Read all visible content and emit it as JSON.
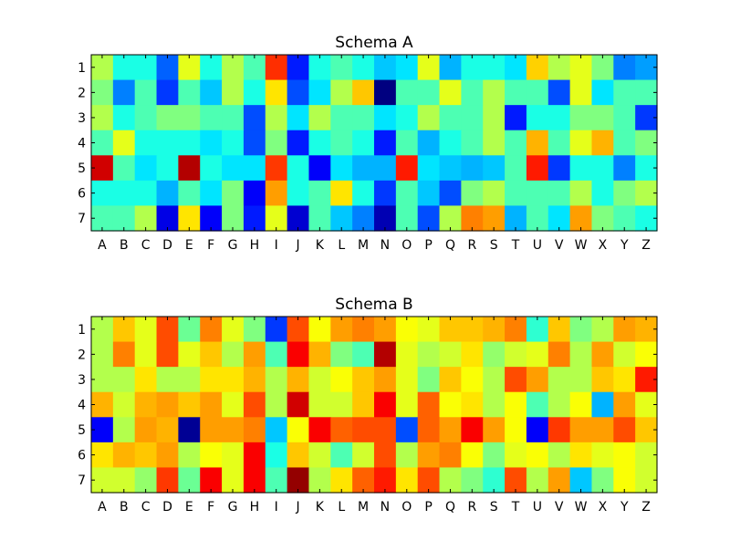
{
  "chart_data": [
    {
      "type": "heatmap",
      "title": "Schema A",
      "xlabel": "",
      "ylabel": "",
      "x_categories": [
        "A",
        "B",
        "C",
        "D",
        "E",
        "F",
        "G",
        "H",
        "I",
        "J",
        "K",
        "L",
        "M",
        "N",
        "O",
        "P",
        "Q",
        "R",
        "S",
        "T",
        "U",
        "V",
        "W",
        "X",
        "Y",
        "Z"
      ],
      "y_categories": [
        "1",
        "2",
        "3",
        "4",
        "5",
        "6",
        "7"
      ],
      "colormap": "jet",
      "value_range": [
        0,
        1
      ],
      "grid": false,
      "legend": "none",
      "values": [
        [
          0.55,
          0.4,
          0.4,
          0.22,
          0.6,
          0.4,
          0.55,
          0.45,
          0.83,
          0.15,
          0.4,
          0.45,
          0.4,
          0.32,
          0.35,
          0.6,
          0.3,
          0.4,
          0.4,
          0.35,
          0.67,
          0.55,
          0.6,
          0.5,
          0.25,
          0.28
        ],
        [
          0.5,
          0.25,
          0.45,
          0.18,
          0.45,
          0.32,
          0.55,
          0.4,
          0.65,
          0.2,
          0.35,
          0.55,
          0.68,
          0.0,
          0.45,
          0.45,
          0.6,
          0.45,
          0.55,
          0.45,
          0.45,
          0.2,
          0.6,
          0.35,
          0.45,
          0.45
        ],
        [
          0.55,
          0.4,
          0.45,
          0.5,
          0.5,
          0.45,
          0.45,
          0.2,
          0.55,
          0.35,
          0.55,
          0.45,
          0.45,
          0.35,
          0.4,
          0.55,
          0.45,
          0.45,
          0.55,
          0.15,
          0.4,
          0.4,
          0.5,
          0.5,
          0.45,
          0.18
        ],
        [
          0.45,
          0.6,
          0.4,
          0.4,
          0.4,
          0.35,
          0.4,
          0.2,
          0.5,
          0.15,
          0.4,
          0.45,
          0.4,
          0.15,
          0.45,
          0.3,
          0.4,
          0.45,
          0.55,
          0.45,
          0.7,
          0.45,
          0.6,
          0.7,
          0.45,
          0.5
        ],
        [
          0.92,
          0.45,
          0.35,
          0.4,
          0.95,
          0.4,
          0.35,
          0.35,
          0.82,
          0.4,
          0.12,
          0.35,
          0.3,
          0.3,
          0.85,
          0.35,
          0.32,
          0.3,
          0.32,
          0.45,
          0.85,
          0.18,
          0.4,
          0.4,
          0.25,
          0.4
        ],
        [
          0.4,
          0.4,
          0.4,
          0.3,
          0.45,
          0.35,
          0.5,
          0.12,
          0.72,
          0.4,
          0.45,
          0.65,
          0.4,
          0.18,
          0.45,
          0.32,
          0.2,
          0.5,
          0.55,
          0.45,
          0.45,
          0.45,
          0.55,
          0.4,
          0.5,
          0.55
        ],
        [
          0.45,
          0.45,
          0.55,
          0.1,
          0.65,
          0.12,
          0.5,
          0.15,
          0.6,
          0.08,
          0.45,
          0.32,
          0.25,
          0.05,
          0.45,
          0.2,
          0.55,
          0.75,
          0.72,
          0.3,
          0.45,
          0.35,
          0.72,
          0.5,
          0.45,
          0.4
        ]
      ]
    },
    {
      "type": "heatmap",
      "title": "Schema B",
      "xlabel": "",
      "ylabel": "",
      "x_categories": [
        "A",
        "B",
        "C",
        "D",
        "E",
        "F",
        "G",
        "H",
        "I",
        "J",
        "K",
        "L",
        "M",
        "N",
        "O",
        "P",
        "Q",
        "R",
        "S",
        "T",
        "U",
        "V",
        "W",
        "X",
        "Y",
        "Z"
      ],
      "y_categories": [
        "1",
        "2",
        "3",
        "4",
        "5",
        "6",
        "7"
      ],
      "colormap": "jet",
      "value_range": [
        0,
        1
      ],
      "grid": false,
      "legend": "none",
      "values": [
        [
          0.55,
          0.68,
          0.6,
          0.8,
          0.48,
          0.75,
          0.6,
          0.5,
          0.18,
          0.8,
          0.62,
          0.72,
          0.75,
          0.72,
          0.62,
          0.6,
          0.68,
          0.68,
          0.7,
          0.75,
          0.42,
          0.68,
          0.5,
          0.55,
          0.72,
          0.7
        ],
        [
          0.55,
          0.75,
          0.6,
          0.8,
          0.6,
          0.68,
          0.55,
          0.72,
          0.45,
          0.88,
          0.7,
          0.5,
          0.45,
          0.95,
          0.6,
          0.55,
          0.58,
          0.65,
          0.52,
          0.58,
          0.6,
          0.75,
          0.55,
          0.72,
          0.58,
          0.62
        ],
        [
          0.55,
          0.55,
          0.65,
          0.55,
          0.55,
          0.65,
          0.65,
          0.7,
          0.55,
          0.7,
          0.58,
          0.62,
          0.68,
          0.72,
          0.6,
          0.5,
          0.68,
          0.62,
          0.55,
          0.8,
          0.72,
          0.55,
          0.55,
          0.68,
          0.65,
          0.85
        ],
        [
          0.7,
          0.58,
          0.7,
          0.72,
          0.68,
          0.72,
          0.6,
          0.8,
          0.55,
          0.92,
          0.58,
          0.58,
          0.68,
          0.88,
          0.6,
          0.78,
          0.62,
          0.65,
          0.55,
          0.62,
          0.45,
          0.55,
          0.62,
          0.3,
          0.72,
          0.6
        ],
        [
          0.12,
          0.55,
          0.72,
          0.7,
          0.02,
          0.72,
          0.72,
          0.75,
          0.32,
          0.62,
          0.88,
          0.78,
          0.8,
          0.8,
          0.2,
          0.78,
          0.72,
          0.88,
          0.72,
          0.62,
          0.12,
          0.82,
          0.72,
          0.72,
          0.8,
          0.68
        ],
        [
          0.65,
          0.7,
          0.68,
          0.72,
          0.55,
          0.62,
          0.6,
          0.88,
          0.4,
          0.68,
          0.58,
          0.45,
          0.58,
          0.8,
          0.55,
          0.72,
          0.75,
          0.62,
          0.5,
          0.6,
          0.62,
          0.55,
          0.65,
          0.6,
          0.62,
          0.58
        ],
        [
          0.58,
          0.58,
          0.52,
          0.82,
          0.48,
          0.88,
          0.6,
          0.88,
          0.45,
          0.98,
          0.55,
          0.65,
          0.78,
          0.85,
          0.65,
          0.8,
          0.55,
          0.5,
          0.42,
          0.8,
          0.55,
          0.72,
          0.32,
          0.5,
          0.62,
          0.58
        ]
      ]
    }
  ]
}
